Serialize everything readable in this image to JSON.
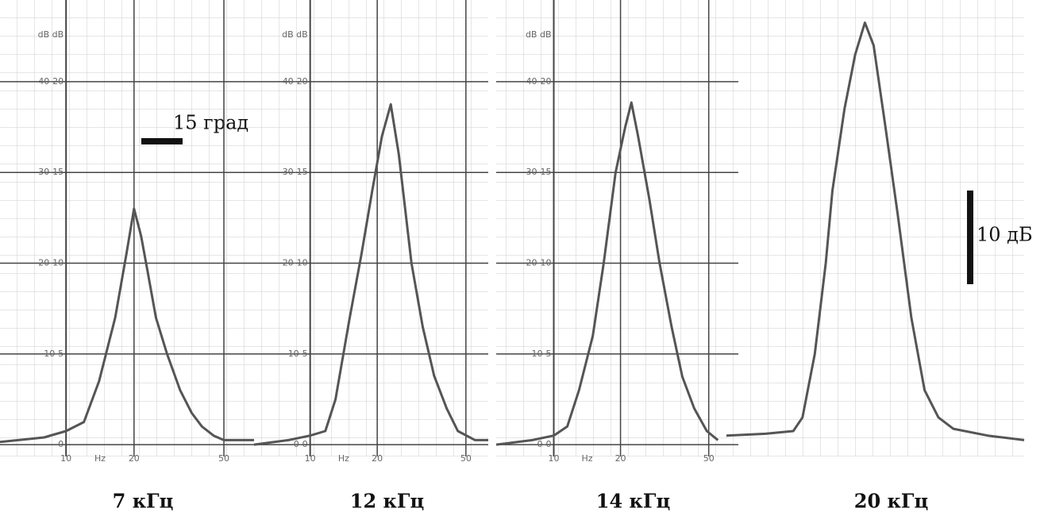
{
  "chart_data": [
    {
      "type": "line",
      "title": "7 кГц",
      "ylabel": "dB dB",
      "xlabel": "Hz",
      "xscale": "log",
      "color": "#555555",
      "xlim": [
        5.1,
        68
      ],
      "ylim": [
        -1.3,
        49
      ],
      "xticks": [
        10,
        20,
        50
      ],
      "yticks": [
        {
          "value": 0,
          "label": "0"
        },
        {
          "value": 10,
          "label": "10-5"
        },
        {
          "value": 20,
          "label": "20-10"
        },
        {
          "value": 30,
          "label": "30-15"
        },
        {
          "value": 40,
          "label": "40-20"
        }
      ],
      "x": [
        5.1,
        8,
        10,
        12,
        14,
        16.5,
        18.5,
        20,
        21.5,
        23,
        25,
        28,
        32,
        36,
        40,
        45,
        50,
        68
      ],
      "values": [
        0.3,
        0.8,
        1.5,
        2.5,
        7,
        14,
        21,
        26,
        23,
        19,
        14,
        10,
        6,
        3.5,
        2,
        1,
        0.5,
        0.5
      ]
    },
    {
      "type": "line",
      "title": "12 кГц",
      "ylabel": "dB dB",
      "xlabel": "Hz",
      "xscale": "log",
      "color": "#555555",
      "xlim": [
        5.6,
        63
      ],
      "ylim": [
        -1.3,
        49
      ],
      "xticks": [
        10,
        20,
        50
      ],
      "yticks": [
        {
          "value": 0,
          "label": "0-0"
        },
        {
          "value": 10,
          "label": "10-5"
        },
        {
          "value": 20,
          "label": "20-10"
        },
        {
          "value": 30,
          "label": "30-15"
        },
        {
          "value": 40,
          "label": "40-20"
        }
      ],
      "x": [
        5.6,
        8,
        10,
        11.7,
        13,
        15,
        17,
        19,
        21,
        23,
        25,
        28.5,
        32,
        36,
        41,
        46,
        55,
        63
      ],
      "values": [
        0,
        0.5,
        1,
        1.5,
        5,
        13.8,
        21,
        28,
        34,
        37.5,
        32,
        20,
        13,
        7.6,
        4,
        1.5,
        0.5,
        0.5
      ]
    },
    {
      "type": "line",
      "title": "14 кГц",
      "ylabel": "dB dB",
      "xlabel": "Hz",
      "xscale": "log",
      "color": "#555555",
      "xlim": [
        5.5,
        68
      ],
      "ylim": [
        -1.3,
        49
      ],
      "xticks": [
        10,
        20,
        50
      ],
      "yticks": [
        {
          "value": 0,
          "label": "0-0"
        },
        {
          "value": 10,
          "label": "10-5"
        },
        {
          "value": 20,
          "label": "20-10"
        },
        {
          "value": 30,
          "label": "30-15"
        },
        {
          "value": 40,
          "label": "40-20"
        }
      ],
      "x": [
        5.5,
        8,
        10,
        11.5,
        13,
        15,
        16.8,
        19,
        21,
        22.4,
        24,
        27,
        30,
        34,
        38,
        43,
        49,
        55
      ],
      "values": [
        0,
        0.5,
        1,
        2,
        6,
        12,
        20,
        30,
        35,
        37.7,
        34,
        27,
        20,
        13,
        7.5,
        4,
        1.5,
        0.5
      ]
    },
    {
      "type": "line",
      "title": "20 кГц",
      "xscale": "log",
      "color": "#555555",
      "xlim": [
        10,
        219
      ],
      "ylim": [
        -1.3,
        49
      ],
      "x": [
        10,
        15,
        20,
        22,
        25,
        28,
        30,
        34,
        38,
        42,
        46,
        52,
        59,
        68,
        78,
        90,
        105,
        150,
        219
      ],
      "values": [
        1,
        1.2,
        1.5,
        3,
        10,
        20,
        28,
        37,
        43,
        46.5,
        44,
        35,
        25.4,
        14,
        6,
        3,
        1.75,
        1,
        0.5
      ]
    }
  ],
  "annotations": [
    "15 град",
    "10 дБ"
  ]
}
